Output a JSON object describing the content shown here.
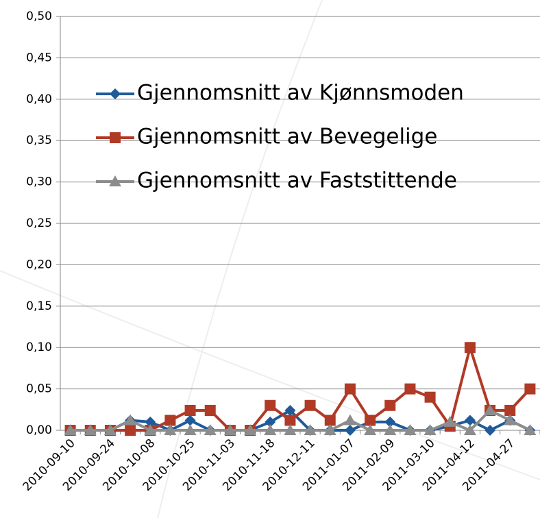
{
  "chart_data": {
    "type": "line",
    "categories": [
      "2010-09-10",
      null,
      "2010-09-24",
      null,
      "2010-10-08",
      null,
      "2010-10-25",
      null,
      "2010-11-03",
      null,
      "2010-11-18",
      null,
      "2010-12-11",
      null,
      "2011-01-07",
      null,
      "2011-02-09",
      null,
      "2011-03-10",
      null,
      "2011-04-12",
      null,
      "2011-04-27",
      null
    ],
    "series": [
      {
        "name": "Gjennomsnitt av Kjønnsmoden",
        "color": "#1f5a99",
        "marker": "diamond",
        "values": [
          0,
          0,
          0,
          0.012,
          0.01,
          0,
          0.012,
          0,
          0,
          0,
          0.01,
          0.024,
          0,
          0,
          0,
          0.01,
          0.01,
          0,
          0,
          0.005,
          0.012,
          0,
          0.012,
          0
        ]
      },
      {
        "name": "Gjennomsnitt av Bevegelige",
        "color": "#b03a26",
        "marker": "square",
        "values": [
          0,
          0,
          0,
          0,
          0,
          0.012,
          0.024,
          0.024,
          0,
          0,
          0.03,
          0.012,
          0.03,
          0.012,
          0.05,
          0.012,
          0.03,
          0.05,
          0.04,
          0.005,
          0.1,
          0.024,
          0.024,
          0.05
        ]
      },
      {
        "name": "Gjennomsnitt av Faststittende",
        "color": "#8c8c8c",
        "marker": "triangle",
        "values": [
          0,
          0,
          0,
          0.012,
          0,
          0,
          0,
          0,
          0,
          0,
          0,
          0,
          0,
          0,
          0.012,
          0,
          0,
          0,
          0,
          0.01,
          0,
          0.024,
          0.012,
          0
        ]
      }
    ],
    "ylim": [
      0,
      0.5
    ],
    "yticks": [
      {
        "value": 0,
        "label": "0,00"
      },
      {
        "value": 0.05,
        "label": "0,05"
      },
      {
        "value": 0.1,
        "label": "0,10"
      },
      {
        "value": 0.15,
        "label": "0,15"
      },
      {
        "value": 0.2,
        "label": "0,20"
      },
      {
        "value": 0.25,
        "label": "0,25"
      },
      {
        "value": 0.3,
        "label": "0,30"
      },
      {
        "value": 0.35,
        "label": "0,35"
      },
      {
        "value": 0.4,
        "label": "0,40"
      },
      {
        "value": 0.45,
        "label": "0,45"
      },
      {
        "value": 0.5,
        "label": "0,50"
      }
    ],
    "grid": true,
    "legend": "inside"
  }
}
